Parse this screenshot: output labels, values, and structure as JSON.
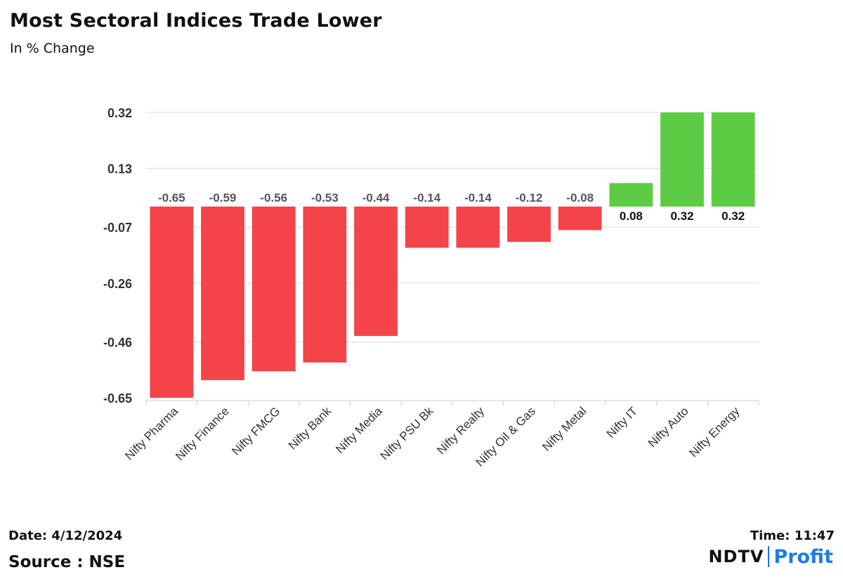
{
  "header": {
    "title": "Most Sectoral Indices Trade Lower",
    "subtitle": "In % Change"
  },
  "footer": {
    "date": "Date: 4/12/2024",
    "source": "Source : NSE",
    "time": "Time: 11:47"
  },
  "brand": {
    "ndtv": "NDTV",
    "profit_pre": "Prof",
    "profit_i": "i",
    "profit_post": "t"
  },
  "colors": {
    "negative": "#f5434a",
    "positive": "#5ecb45",
    "grid": "#dddddd",
    "label_neg": "#555555",
    "label_pos": "#111111"
  },
  "chart_data": {
    "type": "bar",
    "title": "Most Sectoral Indices Trade Lower",
    "ylabel": "In % Change",
    "xlabel": "",
    "ylim": [
      -0.65,
      0.32
    ],
    "yticks": [
      "0.32",
      "0.13",
      "-0.07",
      "-0.26",
      "-0.46",
      "-0.65"
    ],
    "categories": [
      "Nifty Pharma",
      "Nifty Finance",
      "Nifty FMCG",
      "Nifty Bank",
      "Nifty Media",
      "Nifty PSU Bk",
      "Nifty Realty",
      "Nifty Oil & Gas",
      "Nifty Metal",
      "Nifty IT",
      "Nifty Auto",
      "Nifty Energy"
    ],
    "values": [
      -0.65,
      -0.59,
      -0.56,
      -0.53,
      -0.44,
      -0.14,
      -0.14,
      -0.12,
      -0.08,
      0.08,
      0.32,
      0.32
    ],
    "value_labels": [
      "-0.65",
      "-0.59",
      "-0.56",
      "-0.53",
      "-0.44",
      "-0.14",
      "-0.14",
      "-0.12",
      "-0.08",
      "0.08",
      "0.32",
      "0.32"
    ],
    "grid": true,
    "legend": "none"
  }
}
